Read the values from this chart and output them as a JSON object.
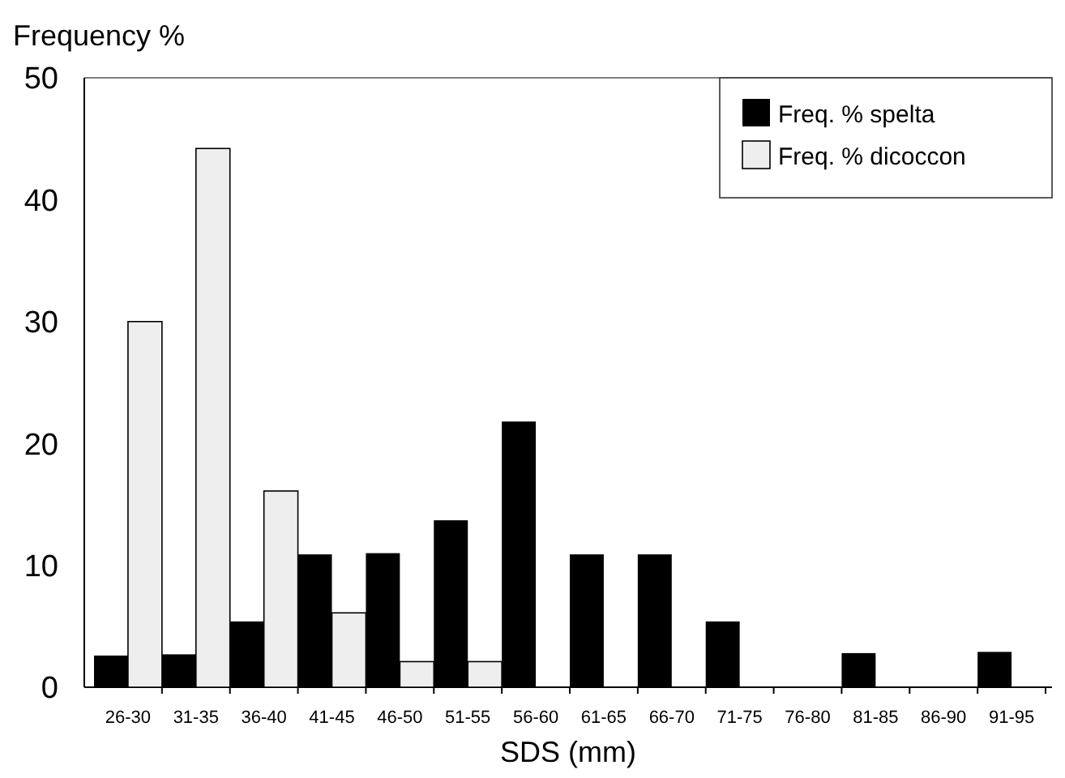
{
  "chart_data": {
    "type": "bar",
    "ylabel": "Frequency %",
    "xlabel": "SDS (mm)",
    "categories": [
      "26-30",
      "31-35",
      "36-40",
      "41-45",
      "46-50",
      "51-55",
      "56-60",
      "61-65",
      "66-70",
      "71-75",
      "76-80",
      "81-85",
      "86-90",
      "91-95"
    ],
    "series": [
      {
        "name": "Freq. % spelta",
        "color": "#000000",
        "values": [
          2.6,
          2.7,
          5.4,
          10.9,
          11,
          13.7,
          21.8,
          10.9,
          10.9,
          5.4,
          0,
          2.8,
          0,
          2.9
        ]
      },
      {
        "name": "Freq. % dicoccon",
        "color": "#eeeeee",
        "values": [
          30,
          44.2,
          16.1,
          6.1,
          2.1,
          2.1,
          0,
          0,
          0,
          0,
          0,
          0,
          0,
          0
        ]
      }
    ],
    "ylim": [
      0,
      50
    ],
    "yticks": [
      0,
      10,
      20,
      30,
      40,
      50
    ],
    "legend": "top right"
  }
}
